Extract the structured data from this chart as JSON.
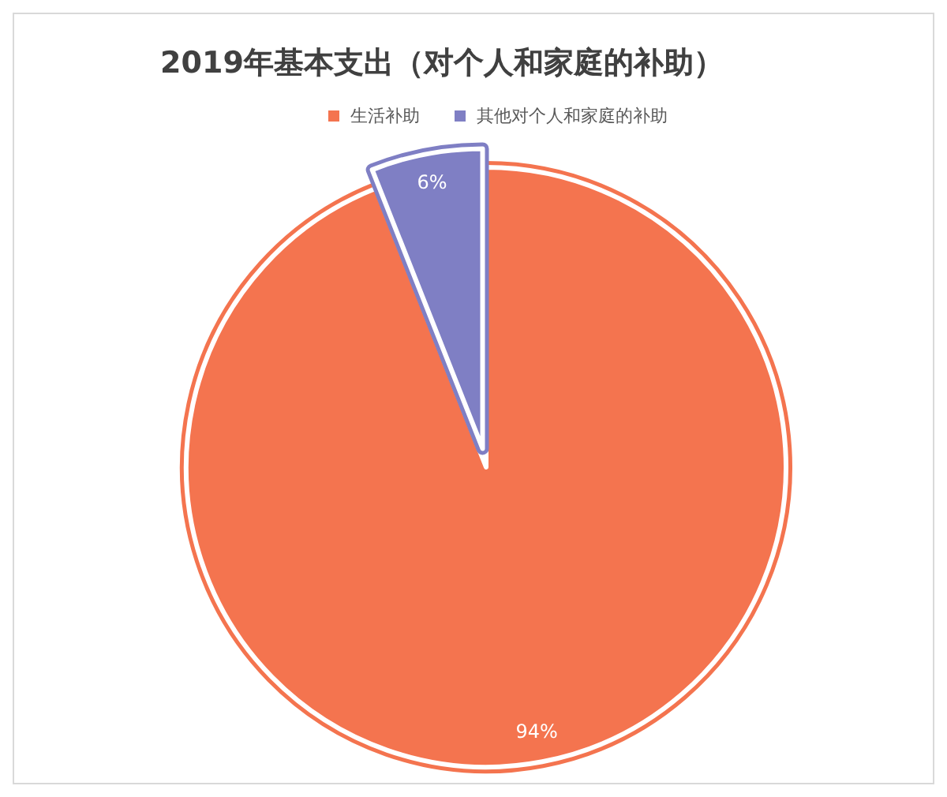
{
  "chart_data": {
    "type": "pie",
    "title": "2019年基本支出（对个人和家庭的补助）",
    "categories": [
      "生活补助",
      "其他对个人和家庭的补助"
    ],
    "values": [
      94,
      6
    ],
    "colors": [
      "#f4744f",
      "#7f7fc4"
    ],
    "value_labels": [
      "94%",
      "6%"
    ],
    "legend": "top"
  }
}
